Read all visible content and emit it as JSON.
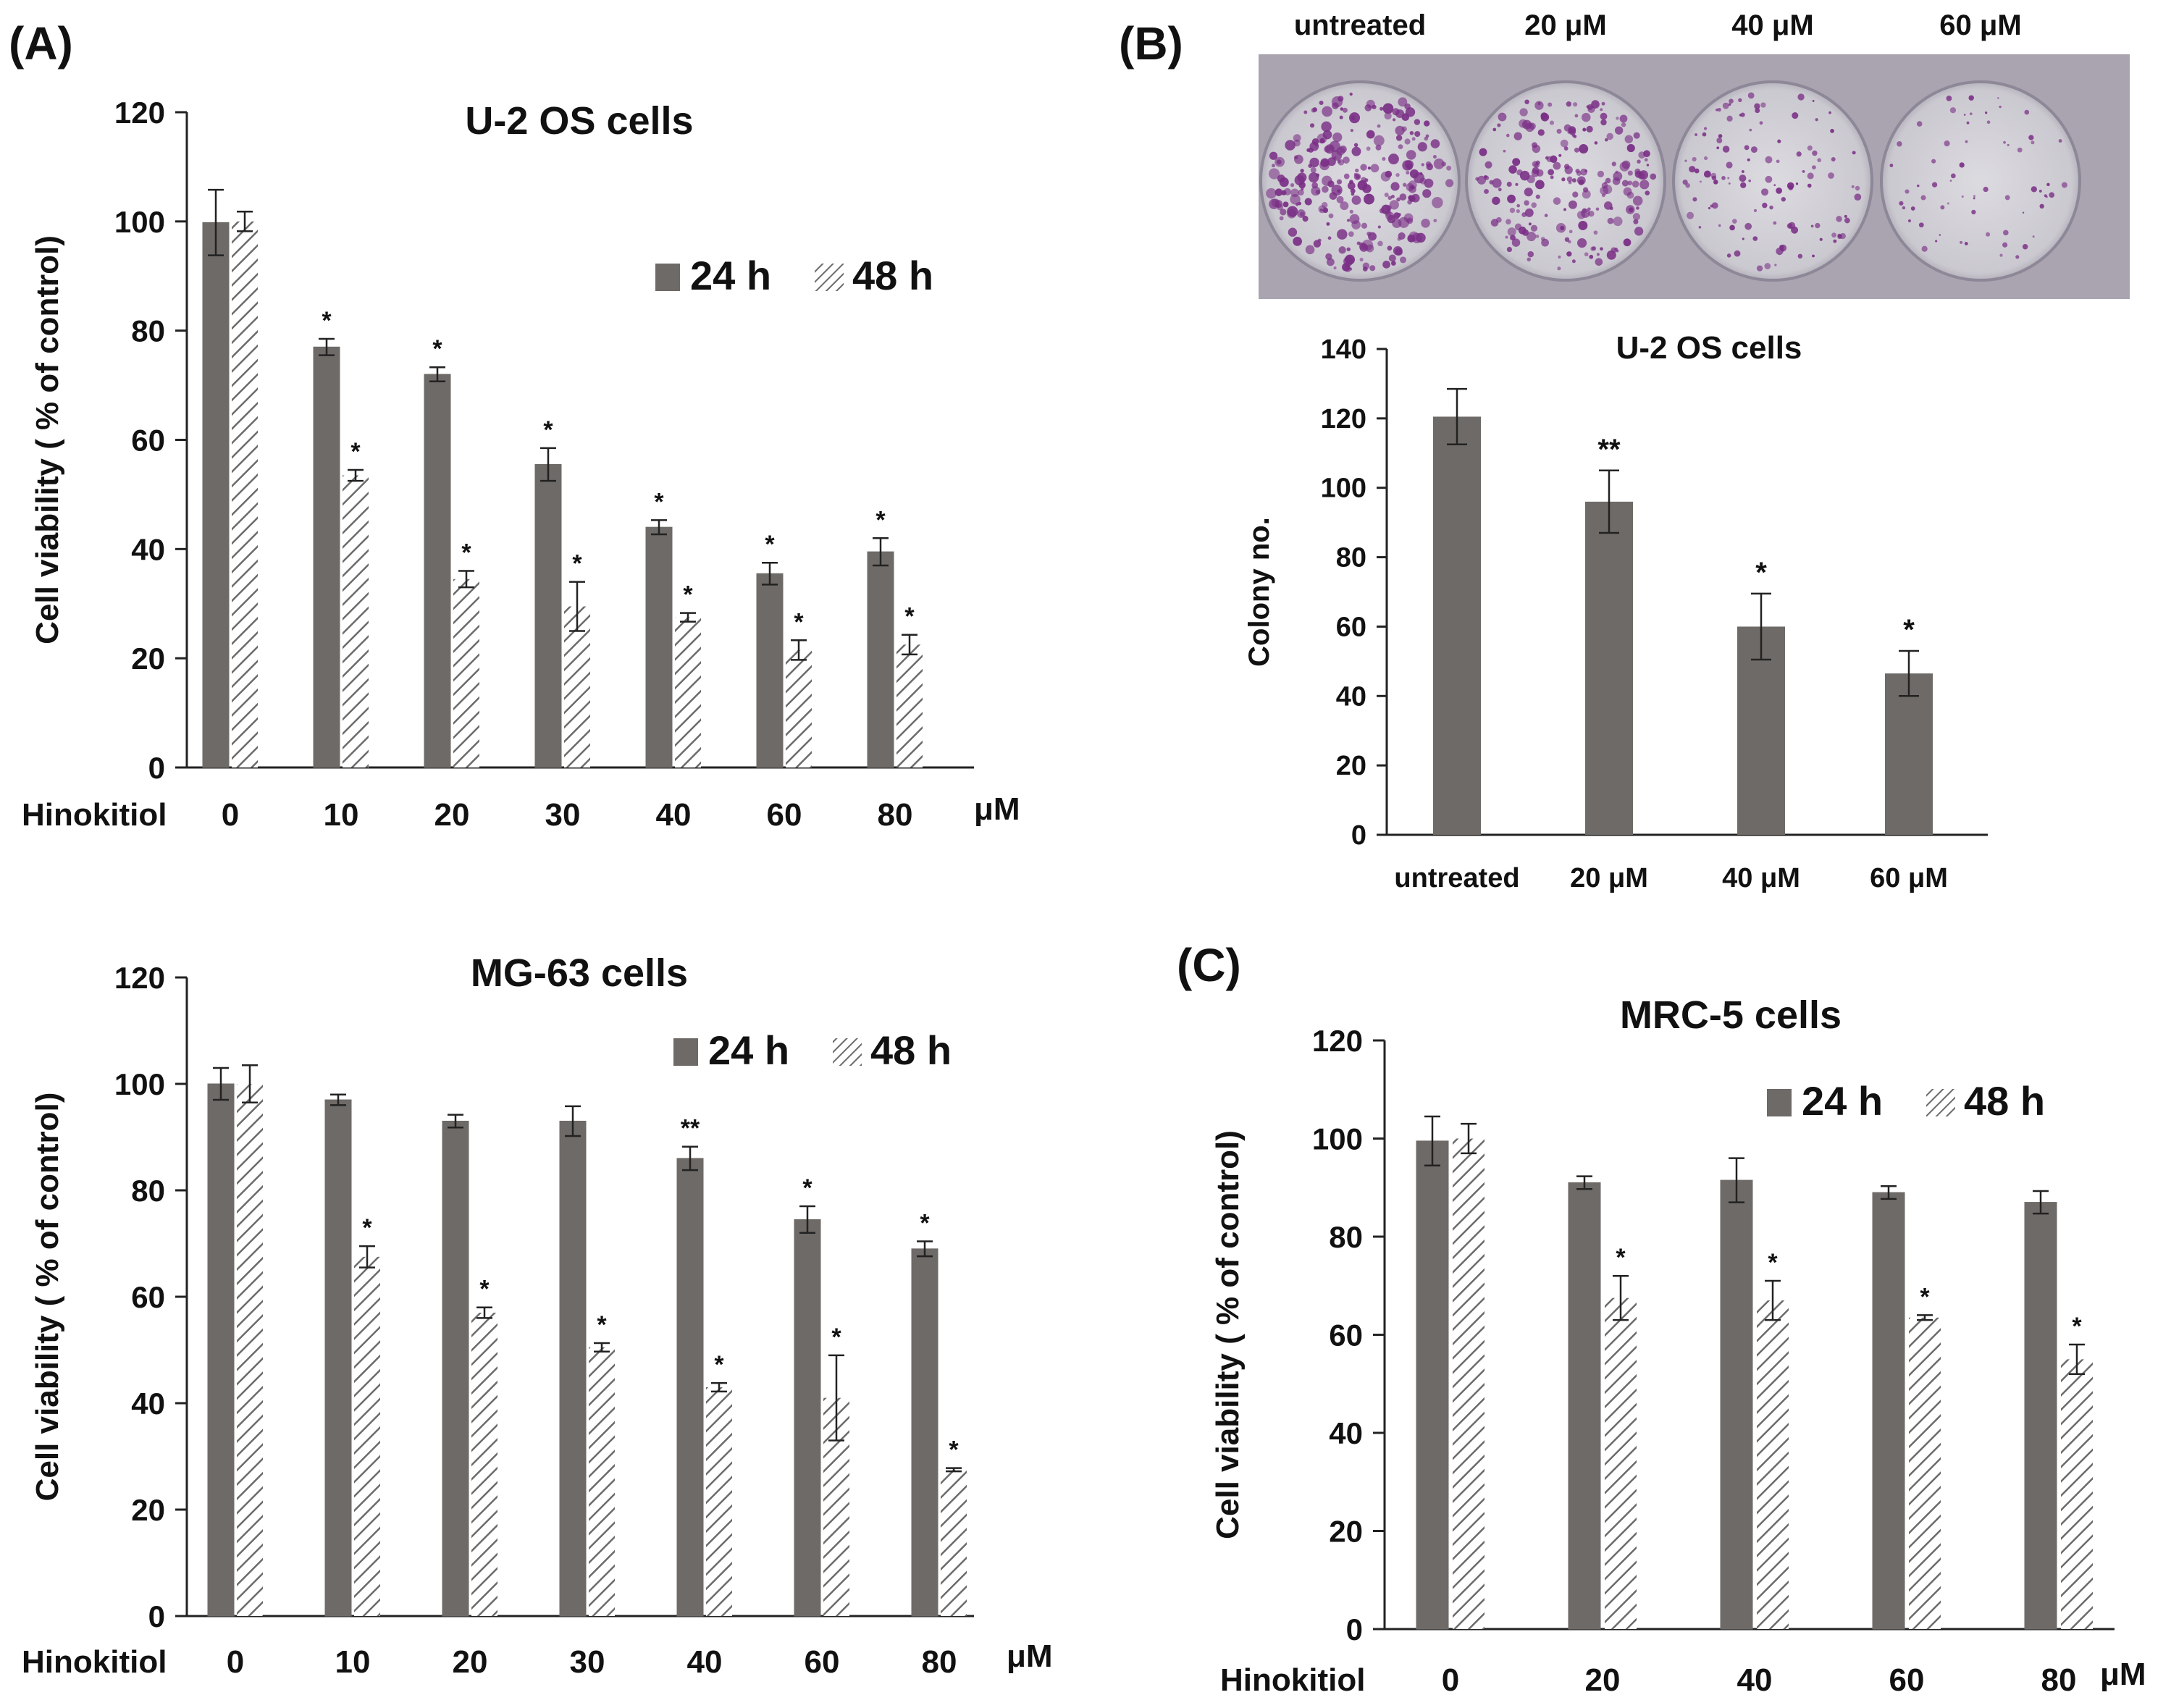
{
  "panels": {
    "A": "(A)",
    "B": "(B)",
    "C": "(C)"
  },
  "colors": {
    "bar_24h": "#6e6a67",
    "hatch_48h": "#6b6b6b",
    "plate_bg": "#cfcdd3",
    "colony": "#7a2f86"
  },
  "colony_photo": {
    "labels": [
      "untreated",
      "20 μM",
      "40 μM",
      "60 μM"
    ],
    "colony_density": [
      1.0,
      0.8,
      0.45,
      0.25
    ]
  },
  "chart_data": [
    {
      "id": "u2os_viability",
      "type": "bar",
      "title": "U-2 OS cells",
      "ylabel": "Cell viability ( % of control)",
      "xlabel_prefix": "Hinokitiol",
      "x_unit": "μM",
      "categories": [
        "0",
        "10",
        "20",
        "30",
        "40",
        "60",
        "80"
      ],
      "yticks": [
        "0",
        "20",
        "40",
        "60",
        "80",
        "100",
        "120"
      ],
      "ylim": [
        0,
        120
      ],
      "series": [
        {
          "name": "24 h",
          "values": [
            99.8,
            77,
            72,
            55.5,
            44,
            35.5,
            39.5
          ],
          "errors": [
            6,
            1.5,
            1.3,
            3,
            1.3,
            2,
            2.5
          ],
          "stars": [
            "",
            "*",
            "*",
            "*",
            "*",
            "*",
            "*"
          ]
        },
        {
          "name": "48 h",
          "values": [
            100,
            53.5,
            34.5,
            29.5,
            27.5,
            21.5,
            22.5
          ],
          "errors": [
            1.8,
            1,
            1.5,
            4.5,
            0.8,
            1.8,
            1.8
          ],
          "stars": [
            "",
            "*",
            "*",
            "*",
            "*",
            "*",
            "*"
          ]
        }
      ]
    },
    {
      "id": "mg63_viability",
      "type": "bar",
      "title": "MG-63 cells",
      "ylabel": "Cell viability ( % of control)",
      "xlabel_prefix": "Hinokitiol",
      "x_unit": "μM",
      "categories": [
        "0",
        "10",
        "20",
        "30",
        "40",
        "60",
        "80"
      ],
      "yticks": [
        "0",
        "20",
        "40",
        "60",
        "80",
        "100",
        "120"
      ],
      "ylim": [
        0,
        120
      ],
      "series": [
        {
          "name": "24 h",
          "values": [
            100,
            97,
            93,
            93,
            86,
            74.5,
            69
          ],
          "errors": [
            3,
            1,
            1.2,
            2.8,
            2.2,
            2.5,
            1.4
          ],
          "stars": [
            "",
            "",
            "",
            "",
            "**",
            "*",
            "*"
          ]
        },
        {
          "name": "48 h",
          "values": [
            100,
            67.5,
            57,
            50.5,
            43,
            41,
            27.5
          ],
          "errors": [
            3.5,
            2,
            1,
            0.8,
            0.8,
            8,
            0.3
          ],
          "stars": [
            "",
            "*",
            "*",
            "*",
            "*",
            "*",
            "*"
          ]
        }
      ]
    },
    {
      "id": "colony_formation",
      "type": "bar",
      "title": "U-2 OS cells",
      "ylabel": "Colony no.",
      "categories": [
        "untreated",
        "20 μM",
        "40 μM",
        "60 μM"
      ],
      "yticks": [
        "0",
        "20",
        "40",
        "60",
        "80",
        "100",
        "120",
        "140"
      ],
      "ylim": [
        0,
        140
      ],
      "series": [
        {
          "name": "Colony no.",
          "values": [
            120.5,
            96,
            60,
            46.5
          ],
          "errors": [
            8,
            9,
            9.5,
            6.5
          ],
          "stars": [
            "",
            "**",
            "*",
            "*"
          ]
        }
      ]
    },
    {
      "id": "mrc5_viability",
      "type": "bar",
      "title": "MRC-5 cells",
      "ylabel": "Cell viability ( % of control)",
      "xlabel_prefix": "Hinokitiol",
      "x_unit": "μM",
      "categories": [
        "0",
        "20",
        "40",
        "60",
        "80"
      ],
      "yticks": [
        "0",
        "20",
        "40",
        "60",
        "80",
        "100",
        "120"
      ],
      "ylim": [
        0,
        120
      ],
      "series": [
        {
          "name": "24 h",
          "values": [
            99.5,
            91,
            91.5,
            89,
            87
          ],
          "errors": [
            5,
            1.3,
            4.5,
            1.3,
            2.3
          ],
          "stars": [
            "",
            "",
            "",
            "",
            ""
          ]
        },
        {
          "name": "48 h",
          "values": [
            100,
            67.5,
            67,
            63.5,
            55
          ],
          "errors": [
            3,
            4.5,
            4,
            0.5,
            3
          ],
          "stars": [
            "",
            "*",
            "*",
            "*",
            "*"
          ]
        }
      ]
    }
  ]
}
